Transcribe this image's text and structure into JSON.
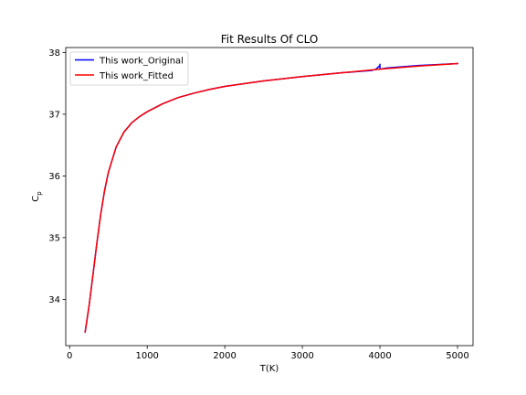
{
  "chart_data": {
    "type": "line",
    "title": "Fit Results Of CLO",
    "xlabel": "T(K)",
    "ylabel": "C",
    "ylabel_sub": "p",
    "xlim": [
      -50,
      5200
    ],
    "ylim": [
      33.25,
      38.08
    ],
    "x_ticks": [
      {
        "value": 0,
        "label": "0"
      },
      {
        "value": 1000,
        "label": "1000"
      },
      {
        "value": 2000,
        "label": "2000"
      },
      {
        "value": 3000,
        "label": "3000"
      },
      {
        "value": 4000,
        "label": "4000"
      },
      {
        "value": 5000,
        "label": "5000"
      }
    ],
    "y_ticks": [
      {
        "value": 34,
        "label": "34"
      },
      {
        "value": 35,
        "label": "35"
      },
      {
        "value": 36,
        "label": "36"
      },
      {
        "value": 37,
        "label": "37"
      },
      {
        "value": 38,
        "label": "38"
      }
    ],
    "grid": false,
    "legend_position": "top-left",
    "series": [
      {
        "name": "This work_Original",
        "color": "#0000ff",
        "x": [
          200,
          250,
          300,
          350,
          400,
          450,
          500,
          600,
          700,
          800,
          900,
          1000,
          1200,
          1400,
          1600,
          1800,
          2000,
          2500,
          3000,
          3500,
          3900,
          3950,
          3975,
          4000,
          4000,
          4000,
          4100,
          4500,
          5000
        ],
        "y": [
          33.47,
          33.89,
          34.39,
          34.9,
          35.37,
          35.76,
          36.06,
          36.47,
          36.71,
          36.86,
          36.96,
          37.04,
          37.17,
          37.27,
          37.34,
          37.4,
          37.45,
          37.54,
          37.61,
          37.67,
          37.71,
          37.73,
          37.76,
          37.79,
          37.81,
          37.73,
          37.75,
          37.79,
          37.82
        ]
      },
      {
        "name": "This work_Fitted",
        "color": "#ff0000",
        "x": [
          200,
          250,
          300,
          350,
          400,
          450,
          500,
          600,
          700,
          800,
          900,
          1000,
          1200,
          1400,
          1600,
          1800,
          2000,
          2500,
          3000,
          3500,
          4000,
          4500,
          5000
        ],
        "y": [
          33.47,
          33.89,
          34.39,
          34.9,
          35.37,
          35.76,
          36.06,
          36.47,
          36.71,
          36.86,
          36.96,
          37.04,
          37.17,
          37.27,
          37.34,
          37.4,
          37.45,
          37.54,
          37.61,
          37.67,
          37.73,
          37.78,
          37.82
        ]
      }
    ]
  }
}
